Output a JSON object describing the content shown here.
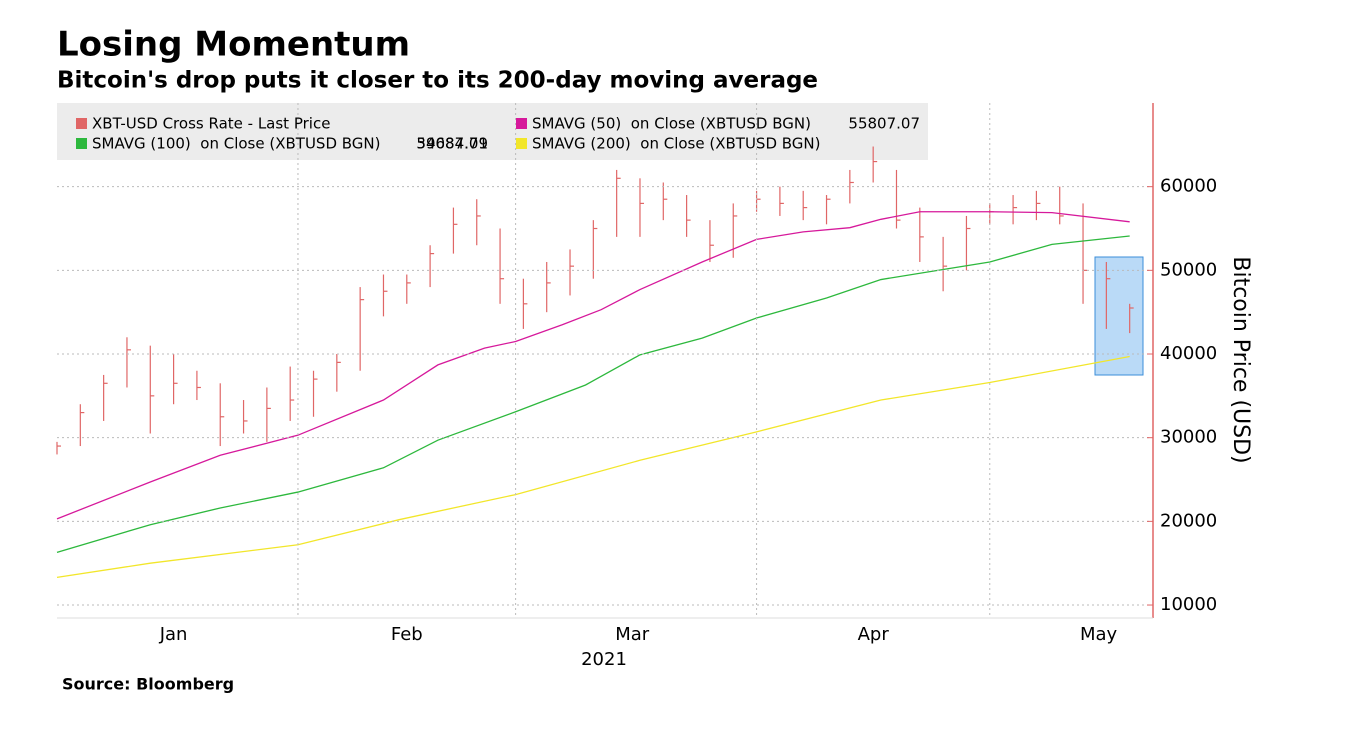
{
  "chart_data": {
    "type": "ohlc",
    "title": "Losing Momentum",
    "subtitle": "Bitcoin's drop puts it closer to its 200-day moving average",
    "source": "Source: Bloomberg",
    "ylabel": "Bitcoin Price (USD)",
    "xlabel": "2021",
    "xlim": [
      1,
      142
    ],
    "xticks": [
      {
        "value": 16,
        "label": "Jan"
      },
      {
        "value": 46,
        "label": "Feb"
      },
      {
        "value": 75,
        "label": "Mar"
      },
      {
        "value": 106,
        "label": "Apr"
      },
      {
        "value": 135,
        "label": "May"
      }
    ],
    "xgrid": [
      32,
      60,
      91,
      121
    ],
    "ylim": [
      8450,
      70000
    ],
    "yticks": [
      10000,
      20000,
      30000,
      40000,
      50000,
      60000
    ],
    "grid": true,
    "series": [
      {
        "name": "XBT-USD Cross Rate - Last Price",
        "color": "#e06666",
        "x": [
          1,
          4,
          7,
          10,
          13,
          16,
          19,
          22,
          25,
          28,
          31,
          34,
          37,
          40,
          43,
          46,
          49,
          52,
          55,
          58,
          61,
          64,
          67,
          70,
          73,
          76,
          79,
          82,
          85,
          88,
          91,
          94,
          97,
          100,
          103,
          106,
          109,
          112,
          115,
          118,
          121,
          124,
          127,
          130,
          133,
          136,
          139
        ],
        "high": [
          29500,
          34000,
          37500,
          42000,
          41000,
          40000,
          38000,
          36500,
          34500,
          36000,
          38500,
          38000,
          40000,
          48000,
          49500,
          49500,
          53000,
          57500,
          58500,
          55000,
          49000,
          51000,
          52500,
          56000,
          62000,
          61000,
          60500,
          59000,
          56000,
          58000,
          59500,
          60000,
          59500,
          59000,
          62000,
          64800,
          62000,
          57500,
          54000,
          56500,
          58000,
          59000,
          59500,
          60000,
          58000,
          51000,
          46000
        ],
        "low": [
          28000,
          29000,
          32000,
          36000,
          30500,
          34000,
          34500,
          29000,
          30500,
          29500,
          32000,
          32500,
          35500,
          38000,
          44500,
          46000,
          48000,
          52000,
          53000,
          46000,
          43000,
          45000,
          47000,
          49000,
          54000,
          54000,
          56000,
          54000,
          51000,
          51500,
          57000,
          56500,
          56000,
          55500,
          58000,
          60500,
          55000,
          51000,
          47500,
          50000,
          55500,
          55500,
          56000,
          55500,
          46000,
          43000,
          42500
        ],
        "values": [
          29000,
          33000,
          36500,
          40500,
          35000,
          36500,
          36000,
          32500,
          32000,
          33500,
          34500,
          37000,
          39000,
          46500,
          47500,
          48500,
          52000,
          55500,
          56500,
          49000,
          46000,
          48500,
          50500,
          55000,
          61000,
          58000,
          58500,
          56000,
          53000,
          56500,
          58500,
          58000,
          57500,
          58500,
          60500,
          63000,
          56000,
          54000,
          50500,
          55000,
          57000,
          57500,
          58000,
          56500,
          50000,
          49000,
          45500
        ]
      },
      {
        "name": "SMAVG (50)  on Close (XBTUSD BGN)",
        "last_value": 55807.07,
        "color": "#d6199b",
        "x": [
          1,
          13,
          22,
          32,
          43,
          50,
          56,
          60,
          66,
          71,
          76,
          84,
          91,
          97,
          103,
          107,
          112,
          121,
          129,
          139
        ],
        "values": [
          20300,
          24700,
          27900,
          30300,
          34500,
          38700,
          40700,
          41500,
          43500,
          45300,
          47700,
          51000,
          53700,
          54600,
          55100,
          56100,
          57000,
          57000,
          56900,
          55800
        ]
      },
      {
        "name": "SMAVG (100)  on Close (XBTUSD BGN)",
        "last_value": 54084.79,
        "color": "#2db83d",
        "x": [
          1,
          13,
          22,
          32,
          43,
          50,
          60,
          69,
          76,
          84,
          91,
          100,
          107,
          115,
          121,
          129,
          139
        ],
        "values": [
          16300,
          19600,
          21600,
          23500,
          26400,
          29700,
          33100,
          36300,
          39900,
          41900,
          44300,
          46700,
          48900,
          50100,
          51000,
          53100,
          54100
        ]
      },
      {
        "name": "SMAVG (200)  on Close (XBTUSD BGN)",
        "last_value": 39687.01,
        "color": "#f2e62a",
        "x": [
          1,
          13,
          32,
          45,
          60,
          76,
          91,
          107,
          121,
          139
        ],
        "values": [
          13300,
          15000,
          17200,
          20200,
          23200,
          27300,
          30700,
          34500,
          36600,
          39700
        ]
      }
    ]
  }
}
